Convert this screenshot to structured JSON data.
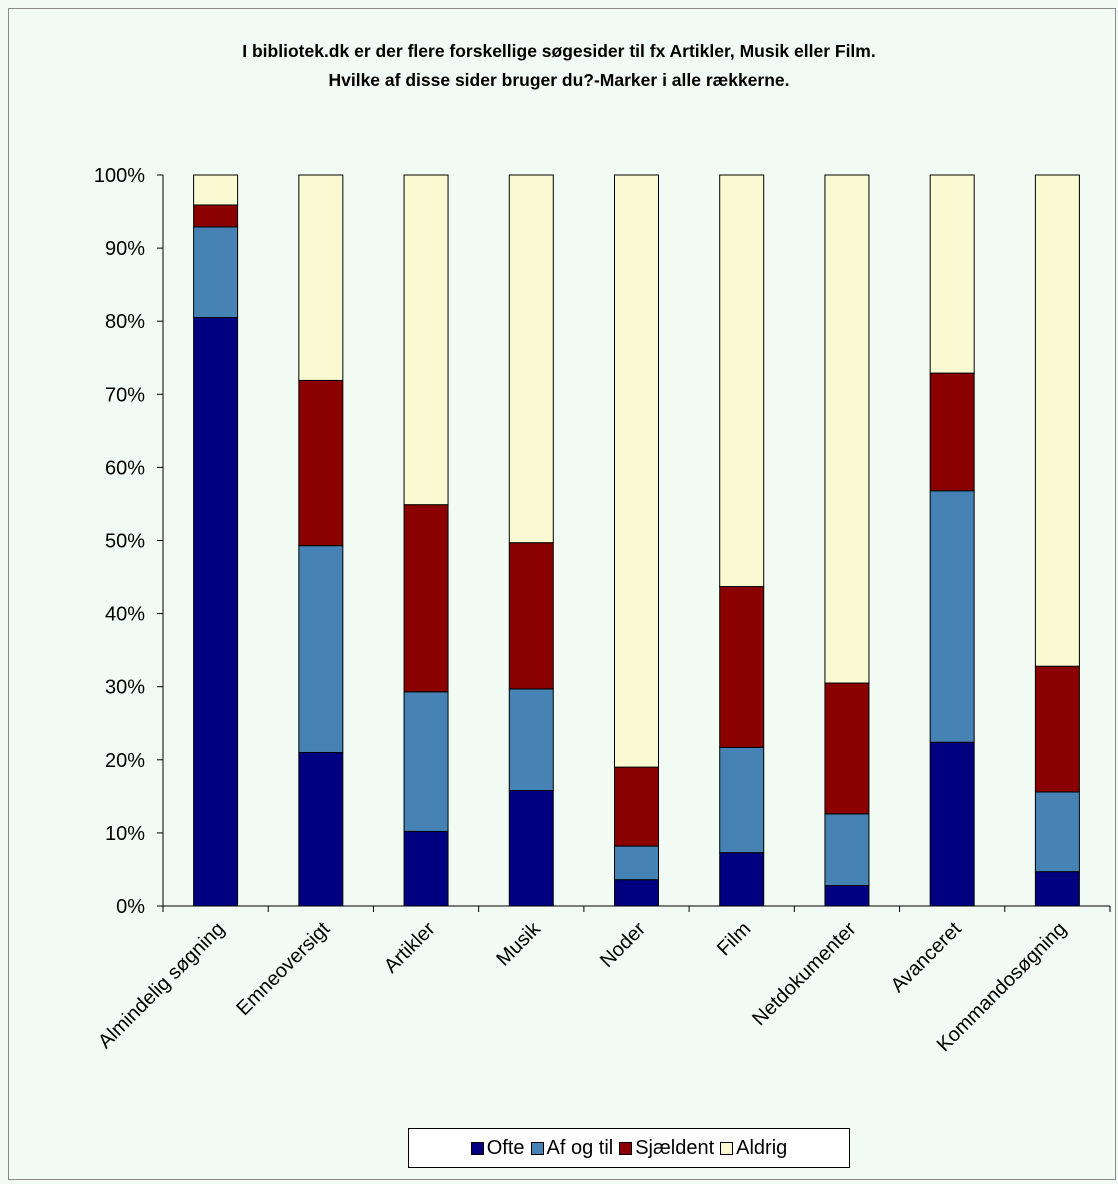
{
  "chart_data": {
    "type": "bar",
    "stacked": true,
    "percent": true,
    "title": "I bibliotek.dk er der flere forskellige søgesider til fx Artikler, Musik eller Film.\nHvilke af disse sider bruger du?-Marker i alle rækkerne.",
    "xlabel": "",
    "ylabel": "",
    "ylim": [
      0,
      100
    ],
    "yticks": [
      "0%",
      "10%",
      "20%",
      "30%",
      "40%",
      "50%",
      "60%",
      "70%",
      "80%",
      "90%",
      "100%"
    ],
    "categories": [
      "Almindelig søgning",
      "Emneoversigt",
      "Artikler",
      "Musik",
      "Noder",
      "Film",
      "Netdokumenter",
      "Avanceret",
      "Kommandosøgning"
    ],
    "series": [
      {
        "name": "Ofte",
        "color": "#000080",
        "values": [
          80.5,
          21,
          10.2,
          15.8,
          3.6,
          7.3,
          2.8,
          22.4,
          4.7
        ]
      },
      {
        "name": "Af og til",
        "color": "#4682b4",
        "values": [
          12.4,
          28.3,
          19.1,
          13.9,
          4.6,
          14.4,
          9.8,
          34.4,
          10.9
        ]
      },
      {
        "name": "Sjældent",
        "color": "#8b0000",
        "values": [
          3,
          22.6,
          25.6,
          20,
          10.8,
          22,
          17.9,
          16.1,
          17.2
        ]
      },
      {
        "name": "Aldrig",
        "color": "#fafad2",
        "values": [
          4.1,
          28.1,
          45.1,
          50.3,
          81,
          56.3,
          69.5,
          27.1,
          67.2
        ]
      }
    ],
    "grid": false,
    "legend_position": "bottom"
  }
}
